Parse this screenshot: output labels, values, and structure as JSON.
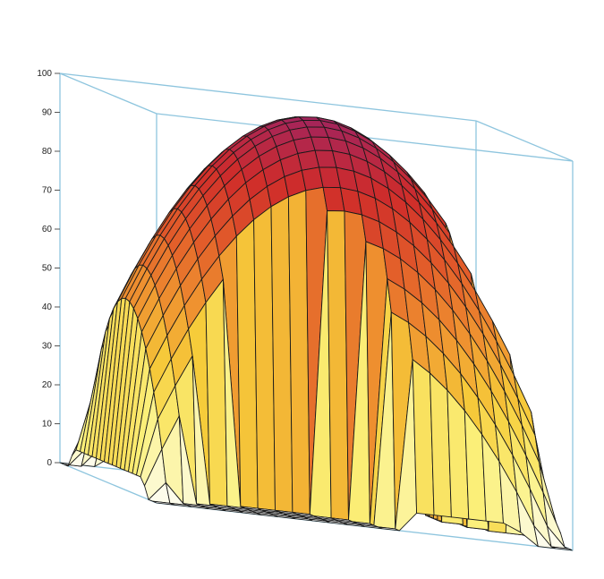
{
  "chart_data": {
    "type": "surface-3d",
    "title": "",
    "xlabel": "",
    "ylabel": "",
    "zlabel": "",
    "zlim": [
      0,
      100
    ],
    "z_ticks": [
      "0",
      "10",
      "20",
      "30",
      "40",
      "50",
      "60",
      "70",
      "80",
      "90",
      "100"
    ],
    "grid": false,
    "legend": "none",
    "colormap": [
      "#fdfdf4",
      "#fbf07a",
      "#f6cc3a",
      "#ef9430",
      "#e25d2a",
      "#cf2c2a",
      "#a3245c"
    ],
    "frame_color": "#8ec5de",
    "mesh_color": "#1a1a1a",
    "surface": {
      "shape": "dome",
      "peak_value": 100,
      "base_value": 0,
      "x_range": [
        -1,
        1
      ],
      "y_range": [
        -1,
        1
      ],
      "mesh_lines_per_axis": 24,
      "description_note": ""
    }
  }
}
